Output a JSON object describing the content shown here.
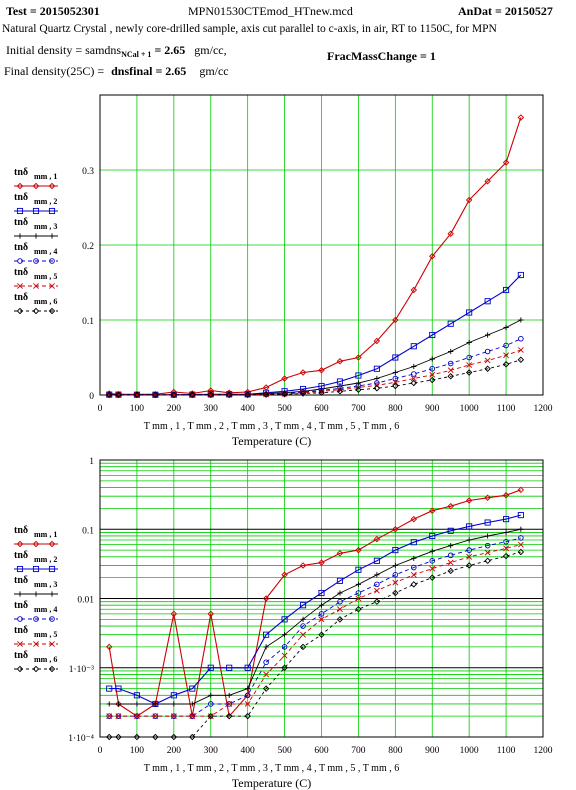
{
  "header": {
    "test_label": "Test  = 2015052301",
    "file_name": "MPN01530CTEmod_HTnew.mcd",
    "andat_label": "AnDat = 20150527",
    "description": "Natural Quartz Crystal , newly core-drilled sample, axis cut parallel to c-axis, in air, RT to 1150C, for MPN",
    "initial_density_label": "Initial density = samdns",
    "initial_density_sub": "NCal + 1",
    "initial_density_value": "= 2.65",
    "initial_density_unit": "gm/cc,",
    "final_density_label": "Final density(25C) =",
    "final_density_var": "dnsfinal = 2.65",
    "final_density_unit": "gm/cc",
    "frac_mass_change": "FracMassChange = 1"
  },
  "legend": [
    {
      "name": "tnδ",
      "sub": "mm , 1",
      "color": "#cc0000",
      "marker": "diamond",
      "dash": ""
    },
    {
      "name": "tnδ",
      "sub": "mm , 2",
      "color": "#0000cc",
      "marker": "square",
      "dash": ""
    },
    {
      "name": "tnδ",
      "sub": "mm , 3",
      "color": "#000000",
      "marker": "plus",
      "dash": ""
    },
    {
      "name": "tnδ",
      "sub": "mm , 4",
      "color": "#0000cc",
      "marker": "circle",
      "dash": "4,3"
    },
    {
      "name": "tnδ",
      "sub": "mm , 5",
      "color": "#cc0000",
      "marker": "x",
      "dash": "4,3"
    },
    {
      "name": "tnδ",
      "sub": "mm , 6",
      "color": "#000000",
      "marker": "diamond",
      "dash": "3,3"
    }
  ],
  "chart_data": [
    {
      "type": "line",
      "scale": "linear",
      "xlabel": "Temperature (C)",
      "xaxis_vars": "T mm , 1 , T mm , 2 , T mm , 3 , T mm , 4 , T mm , 5 , T mm , 6",
      "xlim": [
        0,
        1200
      ],
      "ylim": [
        0,
        0.4
      ],
      "xticks": [
        0,
        100,
        200,
        300,
        400,
        500,
        600,
        700,
        800,
        900,
        1000,
        1100,
        1200
      ],
      "yticks": [
        0,
        0.1,
        0.2,
        0.3
      ],
      "ytick_labels": [
        "0",
        "0.1",
        "0.2",
        "0.3"
      ],
      "grid": true,
      "legend_position": "left",
      "x": [
        25,
        50,
        100,
        150,
        200,
        250,
        300,
        350,
        400,
        450,
        500,
        550,
        600,
        650,
        700,
        750,
        800,
        850,
        900,
        950,
        1000,
        1050,
        1100,
        1140
      ],
      "series": [
        {
          "name": "tnδ mm,1",
          "values": [
            0.002,
            0.001,
            0.001,
            0.001,
            0.004,
            0.002,
            0.006,
            0.003,
            0.004,
            0.01,
            0.022,
            0.03,
            0.033,
            0.045,
            0.05,
            0.072,
            0.1,
            0.14,
            0.185,
            0.215,
            0.26,
            0.285,
            0.31,
            0.37
          ]
        },
        {
          "name": "tnδ mm,2",
          "values": [
            0.0005,
            0.0005,
            0.0004,
            0.0003,
            0.0004,
            0.0005,
            0.001,
            0.001,
            0.001,
            0.003,
            0.005,
            0.008,
            0.012,
            0.018,
            0.026,
            0.035,
            0.05,
            0.065,
            0.08,
            0.095,
            0.11,
            0.125,
            0.14,
            0.16
          ]
        },
        {
          "name": "tnδ mm,3",
          "values": [
            0.0003,
            0.0003,
            0.0003,
            0.0003,
            0.0003,
            0.0003,
            0.0004,
            0.0004,
            0.0005,
            0.002,
            0.003,
            0.005,
            0.008,
            0.012,
            0.016,
            0.022,
            0.03,
            0.038,
            0.048,
            0.058,
            0.07,
            0.08,
            0.09,
            0.1
          ]
        },
        {
          "name": "tnδ mm,4",
          "values": [
            0.0002,
            0.0002,
            0.0002,
            0.0002,
            0.0002,
            0.0002,
            0.0003,
            0.0003,
            0.0004,
            0.0012,
            0.002,
            0.004,
            0.006,
            0.009,
            0.012,
            0.016,
            0.022,
            0.028,
            0.035,
            0.042,
            0.05,
            0.058,
            0.066,
            0.075
          ]
        },
        {
          "name": "tnδ mm,5",
          "values": [
            0.0002,
            0.0002,
            0.0002,
            0.0002,
            0.0002,
            0.0002,
            0.0002,
            0.0003,
            0.0003,
            0.0008,
            0.0015,
            0.003,
            0.005,
            0.007,
            0.01,
            0.013,
            0.017,
            0.022,
            0.027,
            0.033,
            0.04,
            0.046,
            0.053,
            0.06
          ]
        },
        {
          "name": "tnδ mm,6",
          "values": [
            0.0001,
            0.0001,
            0.0001,
            0.0001,
            0.0001,
            0.0001,
            0.0002,
            0.0002,
            0.0002,
            0.0005,
            0.001,
            0.002,
            0.003,
            0.005,
            0.007,
            0.009,
            0.012,
            0.016,
            0.02,
            0.025,
            0.03,
            0.035,
            0.041,
            0.047
          ]
        }
      ]
    },
    {
      "type": "line",
      "scale": "log",
      "xlabel": "Temperature (C)",
      "xaxis_vars": "T mm , 1 , T mm , 2 , T mm , 3 , T mm , 4 , T mm , 5 , T mm , 6",
      "xlim": [
        0,
        1200
      ],
      "ylim": [
        0.0001,
        1
      ],
      "xticks": [
        0,
        100,
        200,
        300,
        400,
        500,
        600,
        700,
        800,
        900,
        1000,
        1100,
        1200
      ],
      "yticks": [
        0.0001,
        0.001,
        0.01,
        0.1,
        1
      ],
      "ytick_labels": [
        "1·10⁻⁴",
        "1·10⁻³",
        "0.01",
        "0.1",
        "1"
      ],
      "grid": true,
      "legend_position": "left",
      "x": [
        25,
        50,
        100,
        150,
        200,
        250,
        300,
        350,
        400,
        450,
        500,
        550,
        600,
        650,
        700,
        750,
        800,
        850,
        900,
        950,
        1000,
        1050,
        1100,
        1140
      ],
      "series": [
        {
          "name": "tnδ mm,1",
          "values": [
            0.002,
            0.0003,
            0.0002,
            0.0003,
            0.006,
            0.0002,
            0.006,
            0.0002,
            0.0004,
            0.01,
            0.022,
            0.03,
            0.033,
            0.045,
            0.05,
            0.072,
            0.1,
            0.14,
            0.185,
            0.215,
            0.26,
            0.285,
            0.31,
            0.37
          ]
        },
        {
          "name": "tnδ mm,2",
          "values": [
            0.0005,
            0.0005,
            0.0004,
            0.0003,
            0.0004,
            0.0005,
            0.001,
            0.001,
            0.001,
            0.003,
            0.005,
            0.008,
            0.012,
            0.018,
            0.026,
            0.035,
            0.05,
            0.065,
            0.08,
            0.095,
            0.11,
            0.125,
            0.14,
            0.16
          ]
        },
        {
          "name": "tnδ mm,3",
          "values": [
            0.0003,
            0.0003,
            0.0003,
            0.0003,
            0.0003,
            0.0003,
            0.0004,
            0.0004,
            0.0005,
            0.002,
            0.003,
            0.005,
            0.008,
            0.012,
            0.016,
            0.022,
            0.03,
            0.038,
            0.048,
            0.058,
            0.07,
            0.08,
            0.09,
            0.1
          ]
        },
        {
          "name": "tnδ mm,4",
          "values": [
            0.0002,
            0.0002,
            0.0002,
            0.0002,
            0.0002,
            0.0002,
            0.0003,
            0.0003,
            0.0004,
            0.0012,
            0.002,
            0.004,
            0.006,
            0.009,
            0.012,
            0.016,
            0.022,
            0.028,
            0.035,
            0.042,
            0.05,
            0.058,
            0.066,
            0.075
          ]
        },
        {
          "name": "tnδ mm,5",
          "values": [
            0.0002,
            0.0002,
            0.0002,
            0.0002,
            0.0002,
            0.0002,
            0.0002,
            0.0003,
            0.0003,
            0.0008,
            0.0015,
            0.003,
            0.005,
            0.007,
            0.01,
            0.013,
            0.017,
            0.022,
            0.027,
            0.033,
            0.04,
            0.046,
            0.053,
            0.06
          ]
        },
        {
          "name": "tnδ mm,6",
          "values": [
            0.0001,
            0.0001,
            0.0001,
            0.0001,
            0.0001,
            0.0001,
            0.0002,
            0.0002,
            0.0002,
            0.0005,
            0.001,
            0.002,
            0.003,
            0.005,
            0.007,
            0.009,
            0.012,
            0.016,
            0.02,
            0.025,
            0.03,
            0.035,
            0.041,
            0.047
          ]
        }
      ]
    }
  ]
}
